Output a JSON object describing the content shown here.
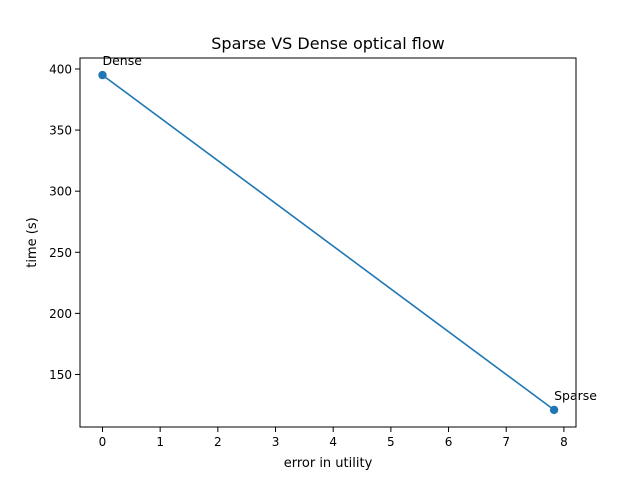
{
  "chart_data": {
    "type": "line",
    "title": "Sparse VS Dense optical flow",
    "xlabel": "error in utility",
    "ylabel": "time (s)",
    "xlim": [
      -0.39,
      8.21
    ],
    "ylim": [
      107,
      409
    ],
    "xticks": [
      0,
      1,
      2,
      3,
      4,
      5,
      6,
      7,
      8
    ],
    "yticks": [
      150,
      200,
      250,
      300,
      350,
      400
    ],
    "grid": false,
    "color": "#1f77b4",
    "series": [
      {
        "x": [
          0,
          7.83
        ],
        "y": [
          395,
          121
        ],
        "point_labels": [
          "Dense",
          "Sparse"
        ]
      }
    ]
  }
}
